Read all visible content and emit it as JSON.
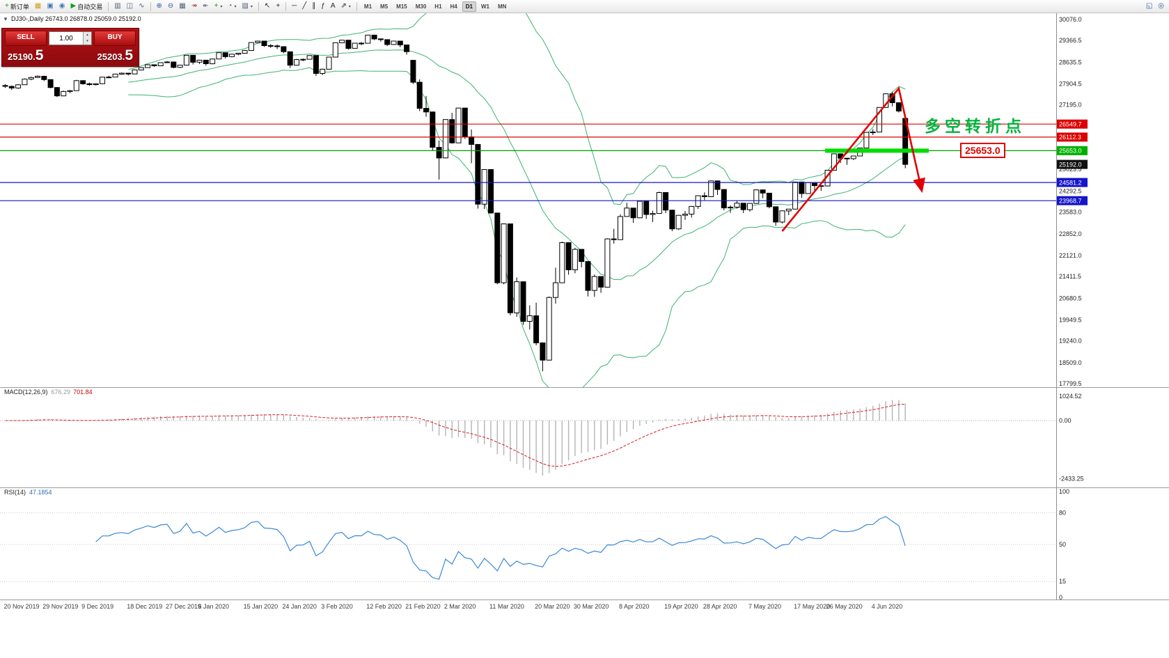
{
  "toolbar": {
    "dropdown_glyph": "▾",
    "items": [
      {
        "name": "new-order-button",
        "glyph": "+",
        "color": "#159815",
        "label": "新订单"
      },
      {
        "name": "expert-advisors-icon",
        "glyph": "▦",
        "color": "#c8a028"
      },
      {
        "name": "terminal-icon",
        "glyph": "▣",
        "color": "#4b77b8"
      },
      {
        "name": "info-icon",
        "glyph": "◉",
        "color": "#4b77b8"
      },
      {
        "name": "auto-trading-button",
        "glyph": "▶",
        "color": "#12a312",
        "label": "自动交易"
      },
      {
        "type": "sep"
      },
      {
        "name": "bar-chart-icon",
        "glyph": "▥",
        "color": "#50607a"
      },
      {
        "name": "candlestick-chart-icon",
        "glyph": "◫",
        "color": "#50607a"
      },
      {
        "name": "line-chart-icon",
        "glyph": "∿",
        "color": "#50607a"
      },
      {
        "type": "sep"
      },
      {
        "name": "zoom-in-icon",
        "glyph": "⊕",
        "color": "#33589c"
      },
      {
        "name": "zoom-out-icon",
        "glyph": "⊖",
        "color": "#33589c"
      },
      {
        "name": "tile-windows-icon",
        "glyph": "▦",
        "color": "#50607a"
      },
      {
        "name": "auto-scroll-icon",
        "glyph": "↠",
        "color": "#a83232"
      },
      {
        "name": "chart-shift-icon",
        "glyph": "↞",
        "color": "#50607a"
      },
      {
        "name": "indicators-icon",
        "glyph": "+",
        "color": "#159815",
        "dropdown": true
      },
      {
        "name": "periods-icon",
        "glyph": "◔",
        "color": "#33589c",
        "dropdown": true
      },
      {
        "name": "templates-icon",
        "glyph": "▨",
        "color": "#50607a",
        "dropdown": true
      },
      {
        "type": "sep"
      },
      {
        "name": "cursor-icon",
        "glyph": "↖",
        "color": "#222222"
      },
      {
        "name": "crosshair-icon",
        "glyph": "+",
        "color": "#222222"
      },
      {
        "type": "sep"
      },
      {
        "name": "horizontal-line-icon",
        "glyph": "─",
        "color": "#222222"
      },
      {
        "name": "trendline-icon",
        "glyph": "╱",
        "color": "#222222"
      },
      {
        "name": "equidistant-channel-icon",
        "glyph": "∥",
        "color": "#222222"
      },
      {
        "name": "fibonacci-icon",
        "glyph": "ƒ",
        "color": "#222222"
      },
      {
        "name": "text-label-icon",
        "glyph": "A",
        "color": "#222222"
      },
      {
        "name": "arrows-icon",
        "glyph": "⇗",
        "color": "#222222",
        "dropdown": true
      },
      {
        "type": "sep"
      }
    ],
    "timeframes": [
      "M1",
      "M5",
      "M15",
      "M30",
      "H1",
      "H4",
      "D1",
      "W1",
      "MN"
    ],
    "active_timeframe": "D1",
    "right_items": [
      {
        "name": "new-chart-icon",
        "glyph": "◱",
        "color": "#33589c"
      },
      {
        "name": "search-icon",
        "glyph": "◎",
        "color": "#33589c"
      }
    ]
  },
  "chart": {
    "collapse_icon": "▼",
    "title": "DJ30-,Daily 26743.0 26878.0 25059.0 25192.0"
  },
  "trade_panel": {
    "sell_label": "SELL",
    "buy_label": "BUY",
    "volume": "1.00",
    "spinner_up": "▴",
    "spinner_down": "▾",
    "sell_price": "25190.5",
    "sell_price_main": "25190.",
    "sell_price_big": "5",
    "buy_price": "25203.5",
    "buy_price_main": "25203.",
    "buy_price_big": "5"
  },
  "annotations": {
    "turning_point": "多空转折点",
    "level_label": "25653.0"
  },
  "macd": {
    "label": "MACD(12,26,9)",
    "main_value": "676.29",
    "signal_value": "701.84",
    "scale_max": "1024.52",
    "scale_zero": "0.00",
    "scale_min": "-2433.25"
  },
  "rsi": {
    "label": "RSI(14)",
    "value": "47.1854",
    "levels": [
      100,
      80,
      50,
      15,
      0
    ]
  },
  "price_axis": {
    "labels": [
      30076.0,
      29366.5,
      28635.5,
      27904.5,
      27195.0,
      25023.5,
      24292.5,
      23583.0,
      22852.0,
      22121.0,
      21411.5,
      20680.5,
      19949.5,
      19240.0,
      18509.0,
      17799.5
    ],
    "tags": [
      {
        "value": 26549.7,
        "bg": "#dd0000"
      },
      {
        "value": 26112.3,
        "bg": "#dd0000"
      },
      {
        "value": 25653.0,
        "bg": "#00b000"
      },
      {
        "value": 25192.0,
        "bg": "#111111"
      },
      {
        "value": 24581.2,
        "bg": "#1515cc"
      },
      {
        "value": 23968.7,
        "bg": "#1515cc"
      }
    ]
  },
  "chart_data": {
    "type": "candlestick",
    "symbol": "DJ30-",
    "period": "Daily",
    "ohlc_current": {
      "open": 26743.0,
      "high": 26878.0,
      "low": 25059.0,
      "close": 25192.0
    },
    "ylim": [
      17799.5,
      30076.0
    ],
    "overlays": {
      "bollinger_period": 20,
      "bollinger_deviation": 2
    },
    "hlines": [
      {
        "value": 26549.7,
        "color": "#dd0000"
      },
      {
        "value": 26112.3,
        "color": "#dd0000"
      },
      {
        "value": 25653.0,
        "color": "#00a000"
      },
      {
        "value": 24581.2,
        "color": "#1515cc"
      },
      {
        "value": 23968.7,
        "color": "#1515cc"
      }
    ],
    "highlight_bar": {
      "value": 25653.0,
      "from_index": 127,
      "to_index": 143,
      "color": "#00dc00"
    },
    "trend_arrow": {
      "color": "#e00000",
      "points": [
        [
          120,
          22940
        ],
        [
          138,
          27752
        ],
        [
          141.5,
          24348
        ]
      ]
    },
    "date_labels": [
      {
        "text": "20 Nov 2019",
        "index": 0
      },
      {
        "text": "29 Nov 2019",
        "index": 6
      },
      {
        "text": "9 Dec 2019",
        "index": 12
      },
      {
        "text": "18 Dec 2019",
        "index": 19
      },
      {
        "text": "27 Dec 2019",
        "index": 25
      },
      {
        "text": "6 Jan 2020",
        "index": 30
      },
      {
        "text": "15 Jan 2020",
        "index": 37
      },
      {
        "text": "24 Jan 2020",
        "index": 43
      },
      {
        "text": "3 Feb 2020",
        "index": 49
      },
      {
        "text": "12 Feb 2020",
        "index": 56
      },
      {
        "text": "21 Feb 2020",
        "index": 62
      },
      {
        "text": "2 Mar 2020",
        "index": 68
      },
      {
        "text": "11 Mar 2020",
        "index": 75
      },
      {
        "text": "20 Mar 2020",
        "index": 82
      },
      {
        "text": "30 Mar 2020",
        "index": 88
      },
      {
        "text": "8 Apr 2020",
        "index": 95
      },
      {
        "text": "19 Apr 2020",
        "index": 102
      },
      {
        "text": "28 Apr 2020",
        "index": 108
      },
      {
        "text": "7 May 2020",
        "index": 115
      },
      {
        "text": "17 May 2020",
        "index": 122
      },
      {
        "text": "26 May 2020",
        "index": 127
      },
      {
        "text": "4 Jun 2020",
        "index": 134
      }
    ],
    "candles": [
      [
        27850,
        27900,
        27770,
        27821
      ],
      [
        27821,
        27850,
        27700,
        27766
      ],
      [
        27766,
        27900,
        27740,
        27875
      ],
      [
        27875,
        28090,
        27870,
        28066
      ],
      [
        28066,
        28150,
        28030,
        28121
      ],
      [
        28121,
        28190,
        28100,
        28164
      ],
      [
        28164,
        28180,
        28000,
        28051
      ],
      [
        28051,
        28060,
        27760,
        27783
      ],
      [
        27783,
        27800,
        27460,
        27502
      ],
      [
        27502,
        27680,
        27490,
        27649
      ],
      [
        27649,
        27700,
        27590,
        27677
      ],
      [
        27677,
        28040,
        27670,
        28015
      ],
      [
        28015,
        28020,
        27880,
        27909
      ],
      [
        27909,
        27950,
        27840,
        27881
      ],
      [
        27881,
        27930,
        27850,
        27911
      ],
      [
        27911,
        28150,
        27900,
        28132
      ],
      [
        28132,
        28180,
        28100,
        28135
      ],
      [
        28135,
        28250,
        28130,
        28235
      ],
      [
        28235,
        28290,
        28220,
        28267
      ],
      [
        28267,
        28280,
        28190,
        28239
      ],
      [
        28239,
        28390,
        28230,
        28376
      ],
      [
        28376,
        28470,
        28370,
        28455
      ],
      [
        28455,
        28570,
        28450,
        28551
      ],
      [
        28551,
        28560,
        28480,
        28515
      ],
      [
        28515,
        28630,
        28510,
        28621
      ],
      [
        28621,
        28680,
        28610,
        28645
      ],
      [
        28645,
        28650,
        28430,
        28462
      ],
      [
        28462,
        28550,
        28440,
        28538
      ],
      [
        28538,
        28880,
        28530,
        28869
      ],
      [
        28869,
        28870,
        28560,
        28635
      ],
      [
        28635,
        28720,
        28580,
        28704
      ],
      [
        28704,
        28710,
        28520,
        28584
      ],
      [
        28584,
        28760,
        28570,
        28745
      ],
      [
        28745,
        28970,
        28740,
        28957
      ],
      [
        28957,
        28960,
        28760,
        28824
      ],
      [
        28824,
        28920,
        28800,
        28907
      ],
      [
        28907,
        28950,
        28870,
        28939
      ],
      [
        28939,
        29040,
        28930,
        29030
      ],
      [
        29030,
        29310,
        29020,
        29298
      ],
      [
        29298,
        29360,
        29280,
        29348
      ],
      [
        29348,
        29350,
        29150,
        29196
      ],
      [
        29196,
        29250,
        29120,
        29186
      ],
      [
        29186,
        29230,
        29080,
        29160
      ],
      [
        29160,
        29170,
        28940,
        28990
      ],
      [
        28990,
        28995,
        28440,
        28536
      ],
      [
        28536,
        28750,
        28530,
        28723
      ],
      [
        28723,
        28760,
        28670,
        28734
      ],
      [
        28734,
        28870,
        28730,
        28859
      ],
      [
        28859,
        28860,
        28170,
        28256
      ],
      [
        28256,
        28420,
        28200,
        28400
      ],
      [
        28400,
        28820,
        28390,
        28808
      ],
      [
        28808,
        29300,
        28800,
        29291
      ],
      [
        29291,
        29390,
        29280,
        29380
      ],
      [
        29380,
        29390,
        29060,
        29103
      ],
      [
        29103,
        29290,
        29100,
        29277
      ],
      [
        29277,
        29320,
        29210,
        29276
      ],
      [
        29276,
        29560,
        29270,
        29551
      ],
      [
        29551,
        29560,
        29380,
        29423
      ],
      [
        29423,
        29430,
        29330,
        29398
      ],
      [
        29398,
        29400,
        29180,
        29232
      ],
      [
        29232,
        29360,
        29220,
        29348
      ],
      [
        29348,
        29350,
        29140,
        29220
      ],
      [
        29220,
        29230,
        28890,
        28992
      ],
      [
        28700,
        28710,
        27900,
        27961
      ],
      [
        27961,
        28060,
        26990,
        27081
      ],
      [
        27081,
        27500,
        26800,
        26958
      ],
      [
        26958,
        26970,
        25650,
        25767
      ],
      [
        25767,
        26000,
        24680,
        25409
      ],
      [
        25409,
        26710,
        25390,
        26703
      ],
      [
        26703,
        26930,
        25890,
        25917
      ],
      [
        25917,
        27100,
        25910,
        27091
      ],
      [
        27091,
        27100,
        26050,
        26121
      ],
      [
        26121,
        26370,
        25230,
        25865
      ],
      [
        25865,
        25870,
        23700,
        23851
      ],
      [
        23851,
        25030,
        23690,
        25018
      ],
      [
        25018,
        25020,
        23530,
        23553
      ],
      [
        23553,
        23560,
        21150,
        21201
      ],
      [
        21201,
        23190,
        21150,
        23186
      ],
      [
        23186,
        23190,
        20100,
        20188
      ],
      [
        20188,
        21380,
        20050,
        21237
      ],
      [
        21237,
        21240,
        19780,
        19899
      ],
      [
        19899,
        20440,
        19620,
        20087
      ],
      [
        20087,
        20530,
        19090,
        19174
      ],
      [
        19174,
        19180,
        18214,
        18592
      ],
      [
        18592,
        20740,
        18580,
        20705
      ],
      [
        20705,
        21710,
        20500,
        21200
      ],
      [
        21200,
        22590,
        21190,
        22552
      ],
      [
        22552,
        22560,
        21470,
        21637
      ],
      [
        21637,
        22380,
        21520,
        22327
      ],
      [
        22327,
        22330,
        21720,
        21917
      ],
      [
        21917,
        21920,
        20740,
        20944
      ],
      [
        20944,
        21480,
        20730,
        21413
      ],
      [
        21413,
        21420,
        20860,
        21053
      ],
      [
        21053,
        22700,
        21050,
        22680
      ],
      [
        22680,
        23020,
        22520,
        22654
      ],
      [
        22654,
        23510,
        22650,
        23434
      ],
      [
        23434,
        23900,
        23430,
        23719
      ],
      [
        23719,
        23720,
        23220,
        23391
      ],
      [
        23391,
        23960,
        23380,
        23949
      ],
      [
        23949,
        23950,
        23350,
        23504
      ],
      [
        23504,
        23630,
        23250,
        23537
      ],
      [
        23537,
        24270,
        23530,
        24242
      ],
      [
        24242,
        24250,
        23550,
        23650
      ],
      [
        23650,
        23660,
        22940,
        23018
      ],
      [
        23018,
        23490,
        22980,
        23476
      ],
      [
        23476,
        23620,
        23320,
        23515
      ],
      [
        23515,
        23790,
        23400,
        23775
      ],
      [
        23775,
        24150,
        23690,
        24134
      ],
      [
        24134,
        24250,
        23990,
        24102
      ],
      [
        24102,
        24650,
        24090,
        24634
      ],
      [
        24634,
        24640,
        24160,
        24346
      ],
      [
        24346,
        24350,
        23640,
        23724
      ],
      [
        23724,
        23810,
        23560,
        23749
      ],
      [
        23749,
        23960,
        23700,
        23883
      ],
      [
        23883,
        23890,
        23550,
        23665
      ],
      [
        23665,
        23890,
        23600,
        23876
      ],
      [
        23876,
        24350,
        23870,
        24331
      ],
      [
        24331,
        24340,
        24050,
        24222
      ],
      [
        24222,
        24230,
        23710,
        23765
      ],
      [
        23765,
        23770,
        23120,
        23248
      ],
      [
        23248,
        23640,
        23200,
        23625
      ],
      [
        23625,
        23690,
        23480,
        23685
      ],
      [
        23685,
        24610,
        23680,
        24597
      ],
      [
        24597,
        24600,
        24060,
        24207
      ],
      [
        24207,
        24580,
        24200,
        24576
      ],
      [
        24576,
        24580,
        24290,
        24474
      ],
      [
        24474,
        24480,
        24300,
        24465
      ],
      [
        24465,
        25000,
        24460,
        24995
      ],
      [
        24995,
        25560,
        24990,
        25548
      ],
      [
        25548,
        25550,
        25240,
        25401
      ],
      [
        25401,
        25410,
        25180,
        25383
      ],
      [
        25383,
        25480,
        25340,
        25475
      ],
      [
        25475,
        25750,
        25470,
        25743
      ],
      [
        25743,
        26280,
        25740,
        26270
      ],
      [
        26270,
        26380,
        26180,
        26282
      ],
      [
        26282,
        27120,
        26280,
        27111
      ],
      [
        27111,
        27580,
        27100,
        27572
      ],
      [
        27572,
        27640,
        27150,
        27272
      ],
      [
        27272,
        27280,
        26940,
        26990
      ],
      [
        26743,
        26878,
        25059,
        25192
      ]
    ]
  }
}
